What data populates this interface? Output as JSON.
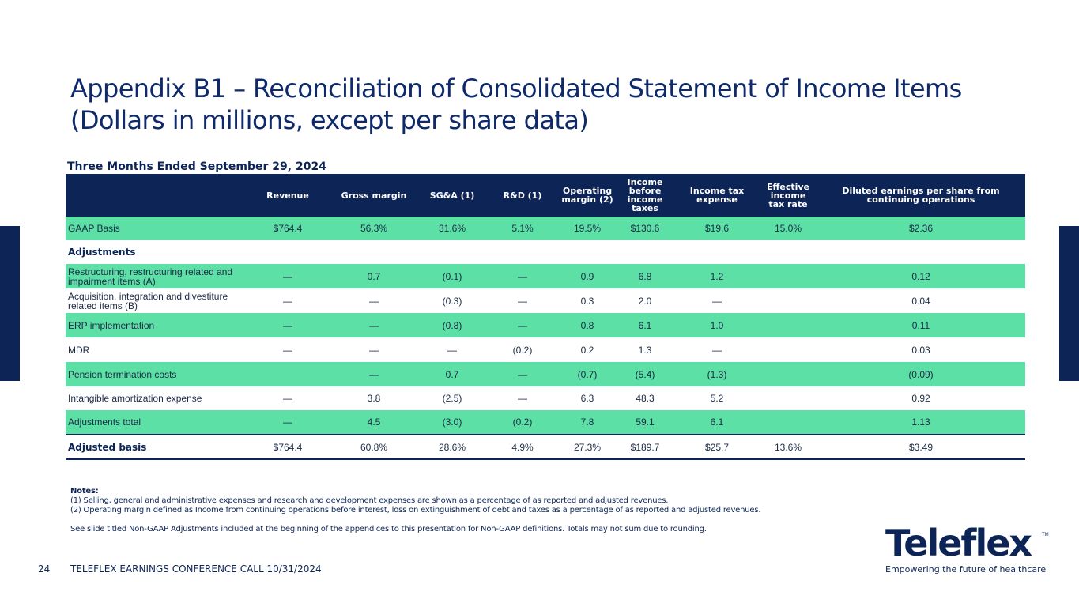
{
  "title_line1": "Appendix B1 – Reconciliation of Consolidated Statement of Income Items",
  "title_line2": "(Dollars in millions, except per share data)",
  "period": "Three Months Ended September 29, 2024",
  "columns": [
    "",
    "Revenue",
    "Gross margin",
    "SG&A (1)",
    "R&D (1)",
    "Operating margin (2)",
    "Income before income taxes",
    "Income tax expense",
    "Effective income tax rate",
    "Diluted earnings per share from continuing operations"
  ],
  "gaap": [
    "GAAP Basis",
    "$764.4",
    "56.3%",
    "31.6%",
    "5.1%",
    "19.5%",
    "$130.6",
    "$19.6",
    "15.0%",
    "$2.36"
  ],
  "adjustments_label": "Adjustments",
  "adjustments": [
    [
      "Restructuring, restructuring related and impairment items (A)",
      "—",
      "0.7",
      "(0.1)",
      "—",
      "0.9",
      "6.8",
      "1.2",
      "",
      "0.12"
    ],
    [
      "Acquisition, integration and divestiture related items (B)",
      "—",
      "—",
      "(0.3)",
      "—",
      "0.3",
      "2.0",
      "—",
      "",
      "0.04"
    ],
    [
      "ERP implementation",
      "—",
      "—",
      "(0.8)",
      "—",
      "0.8",
      "6.1",
      "1.0",
      "",
      "0.11"
    ],
    [
      "MDR",
      "—",
      "—",
      "—",
      "(0.2)",
      "0.2",
      "1.3",
      "—",
      "",
      "0.03"
    ],
    [
      "Pension termination costs",
      "",
      "—",
      "0.7",
      "—",
      "(0.7)",
      "(5.4)",
      "(1.3)",
      "",
      "(0.09)"
    ],
    [
      "Intangible amortization expense",
      "—",
      "3.8",
      "(2.5)",
      "—",
      "6.3",
      "48.3",
      "5.2",
      "",
      "0.92"
    ],
    [
      "Adjustments total",
      "—",
      "4.5",
      "(3.0)",
      "(0.2)",
      "7.8",
      "59.1",
      "6.1",
      "",
      "1.13"
    ]
  ],
  "adjusted": [
    "Adjusted basis",
    "$764.4",
    "60.8%",
    "28.6%",
    "4.9%",
    "27.3%",
    "$189.7",
    "$25.7",
    "13.6%",
    "$3.49"
  ],
  "notes": {
    "head": "Notes:",
    "n1": "(1) Selling, general and administrative expenses and research and development expenses are shown as a percentage of as reported and adjusted revenues.",
    "n2": "(2) Operating margin defined as Income from continuing operations before interest, loss on extinguishment of debt and taxes as a percentage of as reported and adjusted revenues.",
    "see": "See slide titled Non-GAAP Adjustments included at the beginning of the appendices to this presentation for Non-GAAP definitions. Totals may not sum due to rounding."
  },
  "page_number": "24",
  "footer": "TELEFLEX EARNINGS CONFERENCE CALL 10/31/2024",
  "logo": {
    "word": "Teleflex",
    "tm": "TM",
    "tagline": "Empowering the future of healthcare"
  }
}
